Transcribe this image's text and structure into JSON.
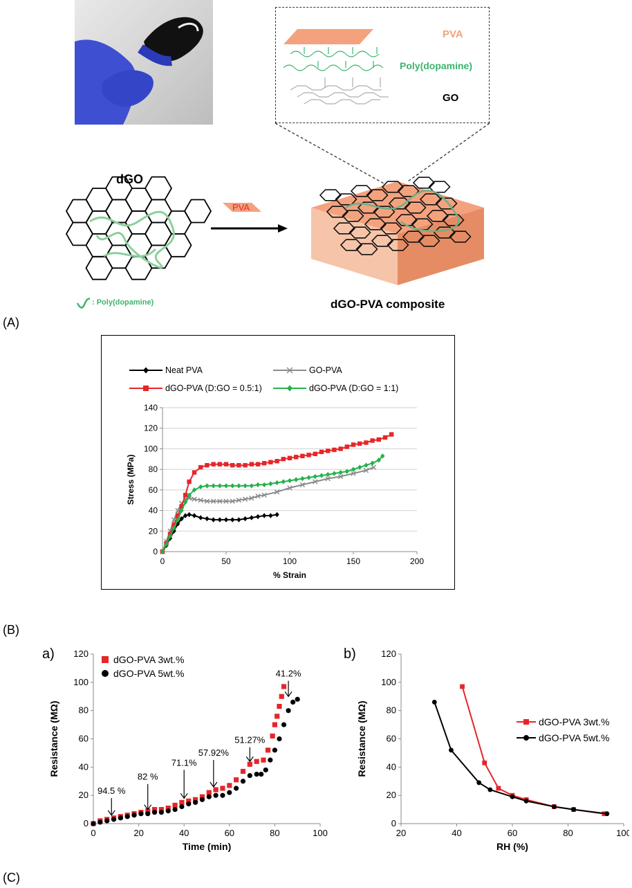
{
  "panel_labels": {
    "a": "(A)",
    "b": "(B)",
    "c": "(C)"
  },
  "schematic": {
    "layer_pva": "PVA",
    "layer_pda": "Poly(dopamine)",
    "layer_go": "GO",
    "dgo_title": "dGO",
    "arrow_label": "PVA",
    "legend_text": ": Poly(dopamine)",
    "composite_label": "dGO-PVA composite"
  },
  "colors": {
    "pva": "#f4a27e",
    "pda": "#3cb46e",
    "red": "#e5262a",
    "green": "#23b24b",
    "gray": "#8a8a8a",
    "black": "#000000"
  },
  "chart_data": [
    {
      "type": "line",
      "id": "B",
      "xlabel": "% Strain",
      "ylabel": "Stress (MPa)",
      "xlim": [
        0,
        200
      ],
      "ylim": [
        0,
        140
      ],
      "xticks": [
        "0",
        "50",
        "100",
        "150",
        "200"
      ],
      "yticks": [
        "0",
        "20",
        "40",
        "60",
        "80",
        "100",
        "120",
        "140"
      ],
      "legend": "top",
      "grid": "horizontal",
      "series": [
        {
          "name": "Neat PVA",
          "color": "#000000",
          "marker": "diamond",
          "x": [
            0,
            3,
            6,
            9,
            12,
            15,
            18,
            21,
            25,
            30,
            35,
            40,
            45,
            50,
            55,
            60,
            65,
            70,
            75,
            80,
            85,
            90
          ],
          "y": [
            0,
            6,
            13,
            20,
            27,
            32,
            35,
            36,
            35,
            33,
            32,
            31,
            31,
            31,
            31,
            31,
            32,
            33,
            34,
            35,
            35,
            36
          ]
        },
        {
          "name": "GO-PVA",
          "color": "#8a8a8a",
          "marker": "x",
          "x": [
            0,
            3,
            6,
            9,
            12,
            15,
            18,
            21,
            25,
            30,
            35,
            40,
            45,
            50,
            55,
            60,
            65,
            70,
            75,
            80,
            90,
            100,
            110,
            120,
            130,
            140,
            150,
            160,
            166
          ],
          "y": [
            0,
            10,
            20,
            31,
            40,
            47,
            51,
            52,
            51,
            50,
            49,
            49,
            49,
            49,
            49,
            50,
            51,
            52,
            54,
            55,
            58,
            62,
            65,
            68,
            71,
            73,
            76,
            79,
            82
          ]
        },
        {
          "name": "dGO-PVA (D:GO = 0.5:1)",
          "color": "#e5262a",
          "marker": "square",
          "x": [
            0,
            3,
            6,
            9,
            12,
            15,
            18,
            21,
            25,
            30,
            35,
            40,
            45,
            50,
            55,
            60,
            65,
            70,
            75,
            80,
            85,
            90,
            95,
            100,
            105,
            110,
            115,
            120,
            125,
            130,
            135,
            140,
            145,
            150,
            155,
            160,
            165,
            170,
            175,
            180
          ],
          "y": [
            0,
            8,
            17,
            26,
            35,
            44,
            55,
            68,
            77,
            82,
            84,
            85,
            85,
            85,
            84,
            84,
            84,
            85,
            85,
            86,
            87,
            88,
            90,
            91,
            92,
            93,
            94,
            95,
            97,
            98,
            99,
            100,
            102,
            104,
            105,
            106,
            108,
            109,
            111,
            114
          ]
        },
        {
          "name": "dGO-PVA (D:GO = 1:1)",
          "color": "#23b24b",
          "marker": "diamond",
          "x": [
            0,
            3,
            6,
            9,
            12,
            15,
            18,
            21,
            25,
            30,
            35,
            40,
            45,
            50,
            55,
            60,
            65,
            70,
            75,
            80,
            85,
            90,
            95,
            100,
            105,
            110,
            115,
            120,
            125,
            130,
            135,
            140,
            145,
            150,
            155,
            160,
            165,
            170,
            173
          ],
          "y": [
            0,
            7,
            15,
            23,
            31,
            40,
            48,
            55,
            60,
            63,
            64,
            64,
            64,
            64,
            64,
            64,
            64,
            64,
            65,
            65,
            66,
            67,
            68,
            69,
            70,
            71,
            72,
            73,
            74,
            75,
            76,
            77,
            78,
            80,
            82,
            84,
            86,
            89,
            93
          ]
        }
      ]
    },
    {
      "type": "scatter",
      "id": "Ca",
      "panel_tag": "a)",
      "xlabel": "Time (min)",
      "ylabel": "Resistance (MΩ)",
      "xlim": [
        0,
        100
      ],
      "ylim": [
        0,
        120
      ],
      "xticks": [
        "0",
        "20",
        "40",
        "60",
        "80",
        "100"
      ],
      "yticks": [
        "0",
        "20",
        "40",
        "60",
        "80",
        "100",
        "120"
      ],
      "legend": "top-left",
      "series": [
        {
          "name": "dGO-PVA 3wt.%",
          "color": "#e5262a",
          "marker": "square",
          "x": [
            0,
            3,
            6,
            9,
            12,
            15,
            18,
            21,
            24,
            27,
            30,
            33,
            36,
            39,
            42,
            45,
            48,
            51,
            54,
            57,
            60,
            63,
            66,
            69,
            72,
            75,
            77,
            79,
            80,
            81,
            82,
            83,
            84
          ],
          "y": [
            0,
            2,
            3,
            4,
            5,
            6,
            7,
            8,
            9,
            10,
            10,
            11,
            13,
            15,
            16,
            17,
            19,
            22,
            24,
            25,
            27,
            31,
            37,
            42,
            44,
            45,
            52,
            62,
            70,
            76,
            83,
            90,
            97
          ]
        },
        {
          "name": "dGO-PVA 5wt.%",
          "color": "#000000",
          "marker": "circle",
          "x": [
            0,
            3,
            6,
            9,
            12,
            15,
            18,
            21,
            24,
            27,
            30,
            33,
            36,
            39,
            42,
            45,
            48,
            51,
            54,
            57,
            60,
            63,
            66,
            69,
            72,
            74,
            76,
            78,
            80,
            82,
            84,
            86,
            88,
            90
          ],
          "y": [
            0,
            1,
            2,
            3,
            4,
            5,
            6,
            7,
            7,
            8,
            8,
            9,
            10,
            12,
            14,
            15,
            17,
            19,
            20,
            20,
            22,
            25,
            30,
            34,
            35,
            35,
            38,
            45,
            52,
            60,
            70,
            80,
            86,
            88
          ]
        }
      ],
      "annotations": [
        {
          "text": "94.5 %",
          "x": 8,
          "y": 21,
          "ax": 8,
          "ay": 4
        },
        {
          "text": "82 %",
          "x": 24,
          "y": 31,
          "ax": 24,
          "ay": 8
        },
        {
          "text": "71.1%",
          "x": 40,
          "y": 41,
          "ax": 40,
          "ay": 16
        },
        {
          "text": "57.92%",
          "x": 53,
          "y": 48,
          "ax": 53,
          "ay": 24
        },
        {
          "text": "51.27%",
          "x": 69,
          "y": 57,
          "ax": 69,
          "ay": 42
        },
        {
          "text": "41.2%",
          "x": 86,
          "y": 104,
          "ax": 86,
          "ay": 88
        }
      ]
    },
    {
      "type": "line",
      "id": "Cb",
      "panel_tag": "b)",
      "xlabel": "RH (%)",
      "ylabel": "Resistance (MΩ)",
      "xlim": [
        20,
        100
      ],
      "ylim": [
        0,
        120
      ],
      "xticks": [
        "20",
        "40",
        "60",
        "80",
        "100"
      ],
      "yticks": [
        "0",
        "20",
        "40",
        "60",
        "80",
        "100",
        "120"
      ],
      "legend": "right",
      "series": [
        {
          "name": "dGO-PVA 3wt.%",
          "color": "#e5262a",
          "marker": "square",
          "x": [
            42,
            50,
            55,
            60,
            65,
            75,
            82,
            93
          ],
          "y": [
            97,
            43,
            25,
            20,
            17,
            12,
            10,
            7
          ]
        },
        {
          "name": "dGO-PVA 5wt.%",
          "color": "#000000",
          "marker": "circle",
          "x": [
            32,
            38,
            48,
            52,
            60,
            65,
            75,
            82,
            94
          ],
          "y": [
            86,
            52,
            29,
            24,
            19,
            16,
            12,
            10,
            7
          ]
        }
      ]
    }
  ]
}
